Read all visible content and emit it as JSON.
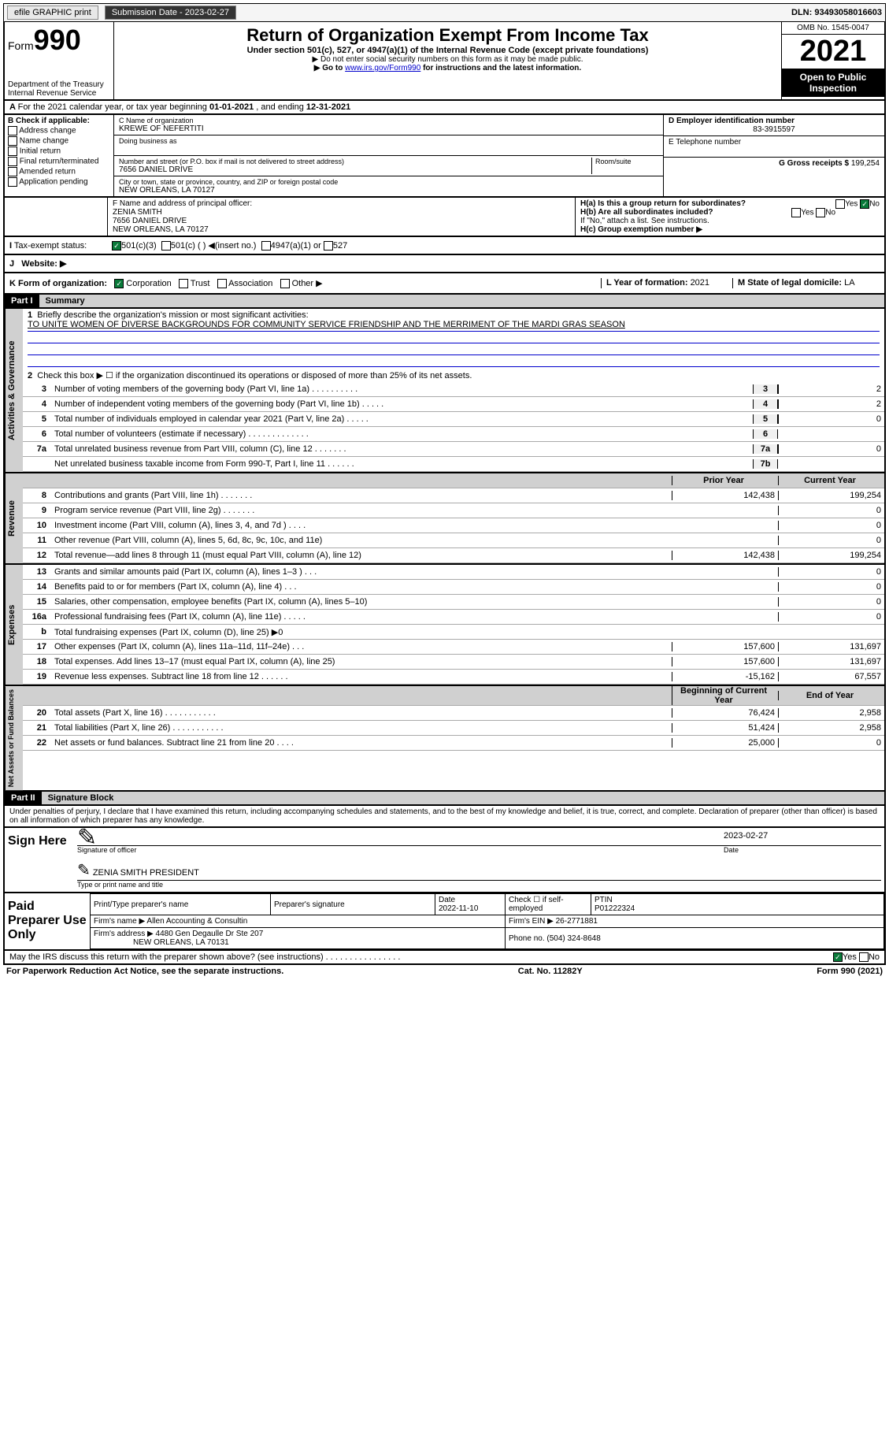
{
  "topbar": {
    "efile": "efile GRAPHIC print",
    "subdate_label": "Submission Date - ",
    "subdate": "2023-02-27",
    "dln_label": "DLN: ",
    "dln": "93493058016603"
  },
  "header": {
    "form_prefix": "Form",
    "form_num": "990",
    "dept": "Department of the Treasury",
    "irs": "Internal Revenue Service",
    "title": "Return of Organization Exempt From Income Tax",
    "subtitle": "Under section 501(c), 527, or 4947(a)(1) of the Internal Revenue Code (except private foundations)",
    "note1": "▶ Do not enter social security numbers on this form as it may be made public.",
    "note2_pre": "▶ Go to ",
    "note2_link": "www.irs.gov/Form990",
    "note2_post": " for instructions and the latest information.",
    "omb": "OMB No. 1545-0047",
    "year": "2021",
    "inspection": "Open to Public Inspection"
  },
  "section_a": {
    "a_text": "For the 2021 calendar year, or tax year beginning ",
    "a_begin": "01-01-2021",
    "a_mid": " , and ending ",
    "a_end": "12-31-2021",
    "b_label": "B Check if applicable:",
    "b_opts": [
      "Address change",
      "Name change",
      "Initial return",
      "Final return/terminated",
      "Amended return",
      "Application pending"
    ],
    "c_label": "C Name of organization",
    "c_name": "KREWE OF NEFERTITI",
    "dba_label": "Doing business as",
    "addr_label": "Number and street (or P.O. box if mail is not delivered to street address)",
    "room_label": "Room/suite",
    "addr": "7656 DANIEL DRIVE",
    "city_label": "City or town, state or province, country, and ZIP or foreign postal code",
    "city": "NEW ORLEANS, LA  70127",
    "d_label": "D Employer identification number",
    "d_ein": "83-3915597",
    "e_label": "E Telephone number",
    "g_label": "G Gross receipts $ ",
    "g_val": "199,254",
    "f_label": "F  Name and address of principal officer:",
    "f_name": "ZENIA SMITH",
    "f_addr1": "7656 DANIEL DRIVE",
    "f_addr2": "NEW ORLEANS, LA  70127",
    "ha_label": "H(a)  Is this a group return for subordinates?",
    "hb_label": "H(b)  Are all subordinates included?",
    "hb_note": "If \"No,\" attach a list. See instructions.",
    "hc_label": "H(c)  Group exemption number ▶",
    "yes": "Yes",
    "no": "No",
    "i_label": "Tax-exempt status:",
    "i_501c3": "501(c)(3)",
    "i_501c": "501(c) ( ) ◀(insert no.)",
    "i_4947": "4947(a)(1) or",
    "i_527": "527",
    "j_label": "Website: ▶",
    "k_label": "K Form of organization:",
    "k_corp": "Corporation",
    "k_trust": "Trust",
    "k_assoc": "Association",
    "k_other": "Other ▶",
    "l_label": "L Year of formation: ",
    "l_val": "2021",
    "m_label": "M State of legal domicile: ",
    "m_val": "LA"
  },
  "part1": {
    "header": "Part I",
    "title": "Summary",
    "vlabels": {
      "ag": "Activities & Governance",
      "rev": "Revenue",
      "exp": "Expenses",
      "net": "Net Assets or Fund Balances"
    },
    "l1": "Briefly describe the organization's mission or most significant activities:",
    "mission": "TO UNITE WOMEN OF DIVERSE BACKGROUNDS FOR COMMUNITY SERVICE FRIENDSHIP AND THE MERRIMENT OF THE MARDI GRAS SEASON",
    "l2": "Check this box ▶ ☐ if the organization discontinued its operations or disposed of more than 25% of its net assets.",
    "lines": [
      {
        "n": "3",
        "t": "Number of voting members of the governing body (Part VI, line 1a) . . . . . . . . . .",
        "b": "3",
        "v": "2"
      },
      {
        "n": "4",
        "t": "Number of independent voting members of the governing body (Part VI, line 1b) . . . . .",
        "b": "4",
        "v": "2"
      },
      {
        "n": "5",
        "t": "Total number of individuals employed in calendar year 2021 (Part V, line 2a) . . . . .",
        "b": "5",
        "v": "0"
      },
      {
        "n": "6",
        "t": "Total number of volunteers (estimate if necessary) . . . . . . . . . . . . .",
        "b": "6",
        "v": ""
      },
      {
        "n": "7a",
        "t": "Total unrelated business revenue from Part VIII, column (C), line 12 . . . . . . .",
        "b": "7a",
        "v": "0"
      },
      {
        "n": "",
        "t": "Net unrelated business taxable income from Form 990-T, Part I, line 11 . . . . . .",
        "b": "7b",
        "v": ""
      }
    ],
    "col_prior": "Prior Year",
    "col_current": "Current Year",
    "rev_lines": [
      {
        "n": "8",
        "t": "Contributions and grants (Part VIII, line 1h) . . . . . . .",
        "p": "142,438",
        "c": "199,254"
      },
      {
        "n": "9",
        "t": "Program service revenue (Part VIII, line 2g) . . . . . . .",
        "p": "",
        "c": "0"
      },
      {
        "n": "10",
        "t": "Investment income (Part VIII, column (A), lines 3, 4, and 7d ) . . . .",
        "p": "",
        "c": "0"
      },
      {
        "n": "11",
        "t": "Other revenue (Part VIII, column (A), lines 5, 6d, 8c, 9c, 10c, and 11e)",
        "p": "",
        "c": "0"
      },
      {
        "n": "12",
        "t": "Total revenue—add lines 8 through 11 (must equal Part VIII, column (A), line 12)",
        "p": "142,438",
        "c": "199,254"
      }
    ],
    "exp_lines": [
      {
        "n": "13",
        "t": "Grants and similar amounts paid (Part IX, column (A), lines 1–3 ) . . .",
        "p": "",
        "c": "0"
      },
      {
        "n": "14",
        "t": "Benefits paid to or for members (Part IX, column (A), line 4) . . .",
        "p": "",
        "c": "0"
      },
      {
        "n": "15",
        "t": "Salaries, other compensation, employee benefits (Part IX, column (A), lines 5–10)",
        "p": "",
        "c": "0"
      },
      {
        "n": "16a",
        "t": "Professional fundraising fees (Part IX, column (A), line 11e) . . . . .",
        "p": "",
        "c": "0"
      },
      {
        "n": "b",
        "t": "Total fundraising expenses (Part IX, column (D), line 25) ▶0",
        "p": "shaded",
        "c": "shaded"
      },
      {
        "n": "17",
        "t": "Other expenses (Part IX, column (A), lines 11a–11d, 11f–24e) . . .",
        "p": "157,600",
        "c": "131,697"
      },
      {
        "n": "18",
        "t": "Total expenses. Add lines 13–17 (must equal Part IX, column (A), line 25)",
        "p": "157,600",
        "c": "131,697"
      },
      {
        "n": "19",
        "t": "Revenue less expenses. Subtract line 18 from line 12 . . . . . .",
        "p": "-15,162",
        "c": "67,557"
      }
    ],
    "col_begin": "Beginning of Current Year",
    "col_end": "End of Year",
    "net_lines": [
      {
        "n": "20",
        "t": "Total assets (Part X, line 16) . . . . . . . . . . .",
        "p": "76,424",
        "c": "2,958"
      },
      {
        "n": "21",
        "t": "Total liabilities (Part X, line 26) . . . . . . . . . . .",
        "p": "51,424",
        "c": "2,958"
      },
      {
        "n": "22",
        "t": "Net assets or fund balances. Subtract line 21 from line 20 . . . .",
        "p": "25,000",
        "c": "0"
      }
    ]
  },
  "part2": {
    "header": "Part II",
    "title": "Signature Block",
    "declaration": "Under penalties of perjury, I declare that I have examined this return, including accompanying schedules and statements, and to the best of my knowledge and belief, it is true, correct, and complete. Declaration of preparer (other than officer) is based on all information of which preparer has any knowledge.",
    "sign_here": "Sign Here",
    "sig_officer": "Signature of officer",
    "sig_date": "2023-02-27",
    "date_label": "Date",
    "officer_name": "ZENIA SMITH  PRESIDENT",
    "type_label": "Type or print name and title",
    "paid_label": "Paid Preparer Use Only",
    "col_preparer": "Print/Type preparer's name",
    "col_sig": "Preparer's signature",
    "col_date": "Date",
    "prep_date": "2022-11-10",
    "col_check": "Check ☐ if self-employed",
    "col_ptin": "PTIN",
    "ptin": "P01222324",
    "firm_name_label": "Firm's name    ▶",
    "firm_name": "Allen Accounting & Consultin",
    "firm_ein_label": "Firm's EIN ▶",
    "firm_ein": "26-2771881",
    "firm_addr_label": "Firm's address ▶",
    "firm_addr1": "4480 Gen Degaulle Dr Ste 207",
    "firm_addr2": "NEW ORLEANS, LA  70131",
    "phone_label": "Phone no. ",
    "phone": "(504) 324-8648",
    "discuss": "May the IRS discuss this return with the preparer shown above? (see instructions) . . . . . . . . . . . . . . . .",
    "yes": "Yes",
    "no": "No"
  },
  "footer": {
    "left": "For Paperwork Reduction Act Notice, see the separate instructions.",
    "center": "Cat. No. 11282Y",
    "right_pre": "Form ",
    "right_form": "990",
    "right_post": " (2021)"
  }
}
